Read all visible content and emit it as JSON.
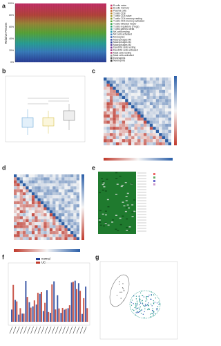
{
  "panels": [
    {
      "label": "a",
      "y_axis_label": "Relative Percent",
      "y_ticks": [
        "0%",
        "20%",
        "40%",
        "60%",
        "80%",
        "100%"
      ],
      "legend": [
        "B cells naive",
        "B cells memory",
        "Plasma cells",
        "T cells CD8",
        "T cells CD4 naive",
        "T cells CD4 memory resting",
        "T cells CD4 memory activated",
        "T cells follicular helper",
        "T cells regulatory (Tregs)",
        "T cells gamma delta",
        "NK cells resting",
        "NK cells activated",
        "Monocytes",
        "Macrophages M0",
        "Macrophages M1",
        "Macrophages M2",
        "Dendritic cells resting",
        "Dendritic cells activated",
        "Mast cells resting",
        "Mast cells activated",
        "Eosinophils",
        "Neutrophils"
      ]
    },
    {
      "label": "b"
    },
    {
      "label": "c"
    },
    {
      "label": "d"
    },
    {
      "label": "e"
    },
    {
      "label": "f",
      "legend": [
        "normal",
        "UC"
      ]
    },
    {
      "label": "g"
    }
  ]
}
